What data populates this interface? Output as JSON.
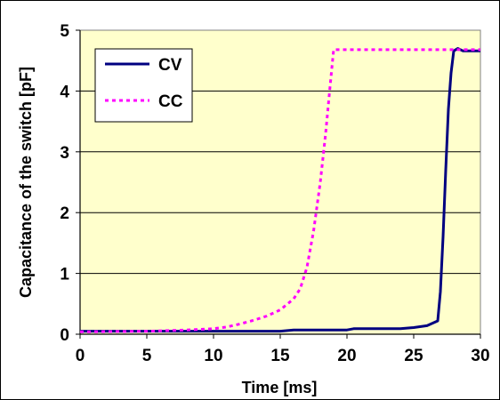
{
  "chart_data": {
    "type": "line",
    "title": "",
    "xlabel": "Time [ms]",
    "ylabel": "Capacitance of the switch [pF]",
    "xlim": [
      0,
      30
    ],
    "ylim": [
      0,
      5
    ],
    "x_ticks": [
      "0",
      "5",
      "10",
      "15",
      "20",
      "25",
      "30"
    ],
    "y_ticks": [
      "0",
      "1",
      "2",
      "3",
      "4",
      "5"
    ],
    "grid": "horizontal",
    "legend_position": "top-left",
    "colors": {
      "plot_background": "#ffffcc",
      "cv": "#000080",
      "cc": "#ff00ff"
    },
    "series": [
      {
        "name": "CV",
        "style": "solid",
        "x": [
          0,
          5,
          10,
          15,
          16,
          20,
          20.5,
          24,
          25,
          26,
          26.8,
          27.0,
          27.2,
          27.4,
          27.6,
          27.8,
          28.0,
          28.3,
          28.7,
          29,
          30
        ],
        "y": [
          0.05,
          0.05,
          0.05,
          0.05,
          0.07,
          0.07,
          0.09,
          0.09,
          0.11,
          0.14,
          0.22,
          0.7,
          1.6,
          2.7,
          3.7,
          4.3,
          4.66,
          4.7,
          4.66,
          4.66,
          4.66
        ]
      },
      {
        "name": "CC",
        "style": "dotted",
        "x": [
          0,
          5,
          8,
          10,
          11,
          12,
          13,
          14,
          15,
          16,
          16.5,
          17,
          17.5,
          18,
          18.4,
          18.7,
          19,
          19.2,
          20,
          25,
          30
        ],
        "y": [
          0.04,
          0.05,
          0.07,
          0.09,
          0.12,
          0.17,
          0.23,
          0.3,
          0.4,
          0.58,
          0.75,
          1.1,
          1.7,
          2.5,
          3.3,
          4.0,
          4.68,
          4.68,
          4.68,
          4.68,
          4.68
        ]
      }
    ]
  }
}
